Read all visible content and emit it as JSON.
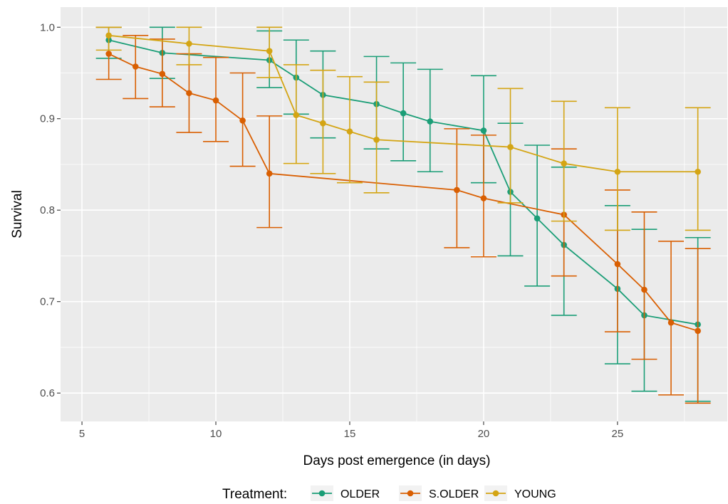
{
  "chart_data": {
    "type": "line",
    "title": "",
    "xlabel": "Days post emergence (in days)",
    "ylabel": "Survival",
    "xlim": [
      4.2,
      29.1
    ],
    "ylim": [
      0.569,
      1.022
    ],
    "xticks": [
      5,
      10,
      15,
      20,
      25
    ],
    "yticks": [
      0.6,
      0.7,
      0.8,
      0.9,
      1.0
    ],
    "xtick_labels": [
      "5",
      "10",
      "15",
      "20",
      "25"
    ],
    "ytick_labels": [
      "0.6",
      "0.7",
      "0.8",
      "0.9",
      "1.0"
    ],
    "grid": true,
    "legend": {
      "title": "Treatment:",
      "position": "bottom"
    },
    "error_bars": true,
    "series": [
      {
        "name": "OLDER",
        "color": "#1B9E77",
        "points": [
          {
            "x": 6,
            "y": 0.986,
            "lo": 0.966,
            "hi": 1.0
          },
          {
            "x": 8,
            "y": 0.972,
            "lo": 0.944,
            "hi": 1.0
          },
          {
            "x": 12,
            "y": 0.964,
            "lo": 0.934,
            "hi": 0.996
          },
          {
            "x": 13,
            "y": 0.945,
            "lo": 0.905,
            "hi": 0.986
          },
          {
            "x": 14,
            "y": 0.926,
            "lo": 0.879,
            "hi": 0.974
          },
          {
            "x": 16,
            "y": 0.916,
            "lo": 0.867,
            "hi": 0.968
          },
          {
            "x": 17,
            "y": 0.906,
            "lo": 0.854,
            "hi": 0.961
          },
          {
            "x": 18,
            "y": 0.897,
            "lo": 0.842,
            "hi": 0.954
          },
          {
            "x": 20,
            "y": 0.887,
            "lo": 0.83,
            "hi": 0.947
          },
          {
            "x": 21,
            "y": 0.82,
            "lo": 0.75,
            "hi": 0.895
          },
          {
            "x": 22,
            "y": 0.791,
            "lo": 0.717,
            "hi": 0.871
          },
          {
            "x": 23,
            "y": 0.762,
            "lo": 0.685,
            "hi": 0.847
          },
          {
            "x": 25,
            "y": 0.714,
            "lo": 0.632,
            "hi": 0.805
          },
          {
            "x": 26,
            "y": 0.685,
            "lo": 0.602,
            "hi": 0.779
          },
          {
            "x": 28,
            "y": 0.675,
            "lo": 0.591,
            "hi": 0.77
          }
        ]
      },
      {
        "name": "S.OLDER",
        "color": "#D95F02",
        "points": [
          {
            "x": 6,
            "y": 0.971,
            "lo": 0.943,
            "hi": 1.0
          },
          {
            "x": 7,
            "y": 0.957,
            "lo": 0.922,
            "hi": 0.991
          },
          {
            "x": 8,
            "y": 0.949,
            "lo": 0.913,
            "hi": 0.987
          },
          {
            "x": 9,
            "y": 0.928,
            "lo": 0.885,
            "hi": 0.971
          },
          {
            "x": 10,
            "y": 0.92,
            "lo": 0.875,
            "hi": 0.967
          },
          {
            "x": 11,
            "y": 0.898,
            "lo": 0.848,
            "hi": 0.95
          },
          {
            "x": 12,
            "y": 0.84,
            "lo": 0.781,
            "hi": 0.903
          },
          {
            "x": 19,
            "y": 0.822,
            "lo": 0.759,
            "hi": 0.889
          },
          {
            "x": 20,
            "y": 0.813,
            "lo": 0.749,
            "hi": 0.882
          },
          {
            "x": 23,
            "y": 0.795,
            "lo": 0.728,
            "hi": 0.867
          },
          {
            "x": 25,
            "y": 0.741,
            "lo": 0.667,
            "hi": 0.822
          },
          {
            "x": 26,
            "y": 0.713,
            "lo": 0.637,
            "hi": 0.798
          },
          {
            "x": 27,
            "y": 0.677,
            "lo": 0.598,
            "hi": 0.766
          },
          {
            "x": 28,
            "y": 0.668,
            "lo": 0.589,
            "hi": 0.758
          }
        ]
      },
      {
        "name": "YOUNG",
        "color": "#D4A514",
        "points": [
          {
            "x": 6,
            "y": 0.991,
            "lo": 0.975,
            "hi": 1.0
          },
          {
            "x": 9,
            "y": 0.982,
            "lo": 0.959,
            "hi": 1.0
          },
          {
            "x": 12,
            "y": 0.974,
            "lo": 0.945,
            "hi": 1.0
          },
          {
            "x": 13,
            "y": 0.904,
            "lo": 0.851,
            "hi": 0.959
          },
          {
            "x": 14,
            "y": 0.895,
            "lo": 0.84,
            "hi": 0.953
          },
          {
            "x": 15,
            "y": 0.886,
            "lo": 0.83,
            "hi": 0.946
          },
          {
            "x": 16,
            "y": 0.877,
            "lo": 0.819,
            "hi": 0.94
          },
          {
            "x": 21,
            "y": 0.869,
            "lo": 0.808,
            "hi": 0.933
          },
          {
            "x": 23,
            "y": 0.851,
            "lo": 0.788,
            "hi": 0.919
          },
          {
            "x": 25,
            "y": 0.842,
            "lo": 0.778,
            "hi": 0.912
          },
          {
            "x": 28,
            "y": 0.842,
            "lo": 0.778,
            "hi": 0.912
          }
        ]
      }
    ]
  }
}
